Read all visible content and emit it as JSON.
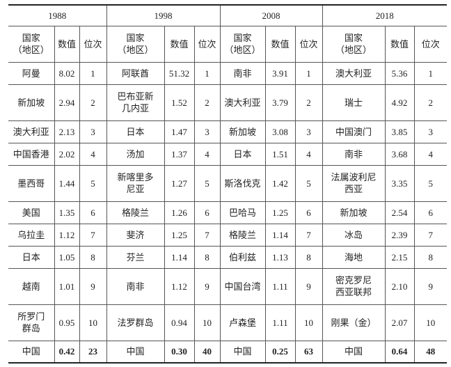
{
  "header": {
    "years": [
      "1988",
      "1998",
      "2008",
      "2018"
    ],
    "col_country": "国家\n（地区）",
    "col_value": "数值",
    "col_rank": "位次"
  },
  "groups": [
    {
      "year": "1988",
      "rows": [
        [
          "阿曼",
          "8.02",
          "1"
        ],
        [
          "新加坡",
          "2.94",
          "2"
        ],
        [
          "澳大利亚",
          "2.13",
          "3"
        ],
        [
          "中国香港",
          "2.02",
          "4"
        ],
        [
          "墨西哥",
          "1.44",
          "5"
        ],
        [
          "美国",
          "1.35",
          "6"
        ],
        [
          "乌拉圭",
          "1.12",
          "7"
        ],
        [
          "日本",
          "1.05",
          "8"
        ],
        [
          "越南",
          "1.01",
          "9"
        ],
        [
          "所罗门\n群岛",
          "0.95",
          "10"
        ]
      ],
      "china": [
        "中国",
        "0.42",
        "23"
      ]
    },
    {
      "year": "1998",
      "rows": [
        [
          "阿联酋",
          "51.32",
          "1"
        ],
        [
          "巴布亚新\n几内亚",
          "1.52",
          "2"
        ],
        [
          "日本",
          "1.47",
          "3"
        ],
        [
          "汤加",
          "1.37",
          "4"
        ],
        [
          "新喀里多\n尼亚",
          "1.27",
          "5"
        ],
        [
          "格陵兰",
          "1.26",
          "6"
        ],
        [
          "斐济",
          "1.25",
          "7"
        ],
        [
          "芬兰",
          "1.14",
          "8"
        ],
        [
          "南非",
          "1.12",
          "9"
        ],
        [
          "法罗群岛",
          "0.94",
          "10"
        ]
      ],
      "china": [
        "中国",
        "0.30",
        "40"
      ]
    },
    {
      "year": "2008",
      "rows": [
        [
          "南非",
          "3.91",
          "1"
        ],
        [
          "澳大利亚",
          "3.79",
          "2"
        ],
        [
          "新加坡",
          "3.08",
          "3"
        ],
        [
          "日本",
          "1.51",
          "4"
        ],
        [
          "斯洛伐克",
          "1.42",
          "5"
        ],
        [
          "巴哈马",
          "1.25",
          "6"
        ],
        [
          "格陵兰",
          "1.14",
          "7"
        ],
        [
          "伯利兹",
          "1.13",
          "8"
        ],
        [
          "中国台湾",
          "1.11",
          "9"
        ],
        [
          "卢森堡",
          "1.11",
          "10"
        ]
      ],
      "china": [
        "中国",
        "0.25",
        "63"
      ]
    },
    {
      "year": "2018",
      "rows": [
        [
          "澳大利亚",
          "5.36",
          "1"
        ],
        [
          "瑞士",
          "4.92",
          "2"
        ],
        [
          "中国澳门",
          "3.85",
          "3"
        ],
        [
          "南非",
          "3.68",
          "4"
        ],
        [
          "法属波利尼\n西亚",
          "3.35",
          "5"
        ],
        [
          "新加坡",
          "2.54",
          "6"
        ],
        [
          "冰岛",
          "2.39",
          "7"
        ],
        [
          "海地",
          "2.15",
          "8"
        ],
        [
          "密克罗尼\n西亚联邦",
          "2.10",
          "9"
        ],
        [
          "刚果（金）",
          "2.07",
          "10"
        ]
      ],
      "china": [
        "中国",
        "0.64",
        "48"
      ]
    }
  ]
}
